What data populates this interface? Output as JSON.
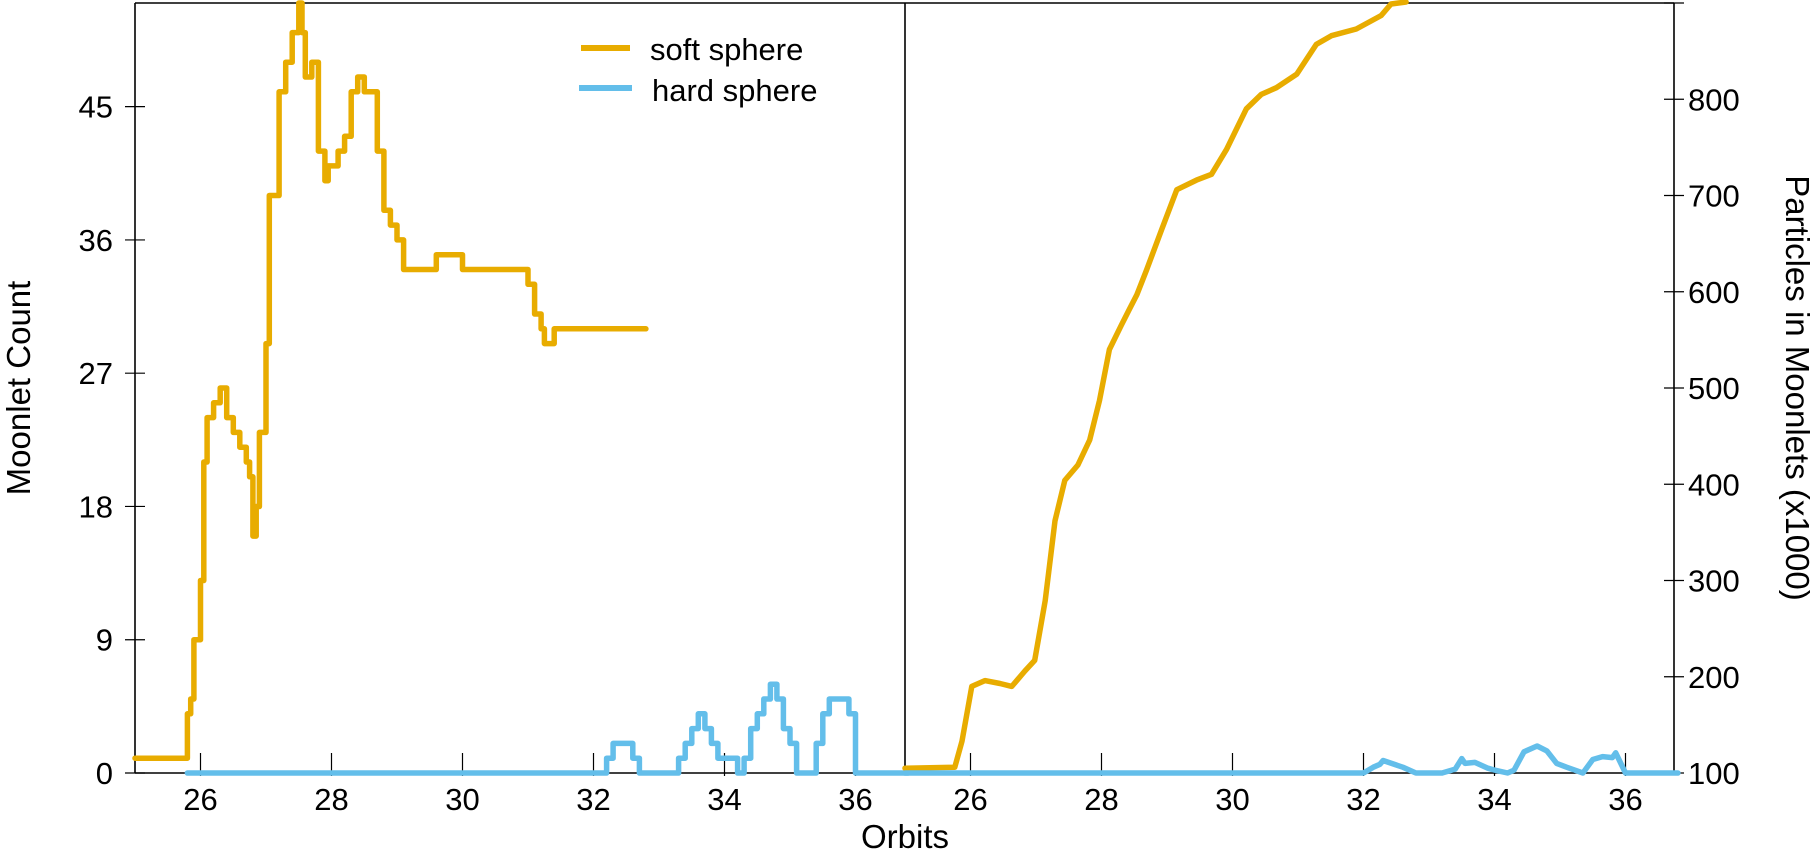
{
  "chart_data": [
    {
      "type": "line",
      "panel": "left",
      "xlabel": "Orbits",
      "ylabel": "Moonlet Count",
      "xlim": [
        25,
        36.8
      ],
      "ylim": [
        0,
        52
      ],
      "xticks": [
        26,
        28,
        30,
        32,
        34,
        36
      ],
      "yticks": [
        0,
        9,
        18,
        27,
        36,
        45
      ],
      "grid": false,
      "legend": {
        "position": "upper center",
        "entries": [
          "soft sphere",
          "hard sphere"
        ]
      },
      "series": [
        {
          "name": "soft sphere",
          "color": "#E8AC00",
          "x": [
            25.0,
            25.7,
            25.8,
            25.85,
            25.9,
            25.95,
            26.0,
            26.05,
            26.1,
            26.2,
            26.3,
            26.4,
            26.5,
            26.6,
            26.7,
            26.75,
            26.8,
            26.85,
            26.9,
            27.0,
            27.05,
            27.1,
            27.2,
            27.3,
            27.4,
            27.5,
            27.55,
            27.6,
            27.7,
            27.8,
            27.9,
            27.95,
            28.0,
            28.1,
            28.2,
            28.3,
            28.4,
            28.5,
            28.6,
            28.7,
            28.8,
            28.9,
            29.0,
            29.1,
            29.2,
            29.5,
            29.6,
            29.9,
            30.0,
            30.5,
            30.7,
            31.0,
            31.1,
            31.2,
            31.25,
            31.3,
            31.4,
            32.8
          ],
          "y": [
            1,
            1,
            4,
            5,
            9,
            9,
            13,
            21,
            24,
            25,
            26,
            24,
            23,
            22,
            21,
            20,
            16,
            18,
            23,
            29,
            39,
            39,
            46,
            48,
            50,
            52,
            50,
            47,
            48,
            42,
            40,
            41,
            41,
            42,
            43,
            46,
            47,
            46,
            46,
            42,
            38,
            37,
            36,
            34,
            34,
            34,
            35,
            35,
            34,
            34,
            34,
            33,
            31,
            30,
            29,
            29,
            30,
            30
          ]
        },
        {
          "name": "hard sphere",
          "color": "#63BEEA",
          "x": [
            25.8,
            32.1,
            32.2,
            32.3,
            32.5,
            32.6,
            32.7,
            33.0,
            33.3,
            33.4,
            33.5,
            33.6,
            33.7,
            33.8,
            33.9,
            34.0,
            34.1,
            34.2,
            34.3,
            34.4,
            34.5,
            34.6,
            34.7,
            34.8,
            34.9,
            35.0,
            35.1,
            35.3,
            35.4,
            35.5,
            35.6,
            35.8,
            35.9,
            36.0,
            36.8
          ],
          "y": [
            0,
            0,
            1,
            2,
            2,
            1,
            0,
            0,
            1,
            2,
            3,
            4,
            3,
            2,
            1,
            1,
            1,
            0,
            1,
            3,
            4,
            5,
            6,
            5,
            3,
            2,
            0,
            0,
            2,
            4,
            5,
            5,
            4,
            0,
            0
          ]
        }
      ]
    },
    {
      "type": "line",
      "panel": "right",
      "xlabel": "Orbits",
      "ylabel": "Particles in Moonlets (x1000)",
      "xlim": [
        25,
        36.8
      ],
      "ylim": [
        100,
        900
      ],
      "xticks": [
        26,
        28,
        30,
        32,
        34,
        36
      ],
      "yticks": [
        100,
        200,
        300,
        400,
        500,
        600,
        700,
        800
      ],
      "grid": false,
      "series": [
        {
          "name": "soft sphere",
          "color": "#E8AC00",
          "x": [
            25.0,
            25.76,
            25.87,
            26.02,
            26.22,
            26.45,
            26.63,
            26.83,
            26.98,
            27.14,
            27.29,
            27.44,
            27.64,
            27.82,
            27.97,
            28.12,
            28.3,
            28.42,
            28.54,
            28.69,
            28.92,
            29.15,
            29.45,
            29.68,
            29.91,
            30.21,
            30.44,
            30.67,
            30.98,
            31.28,
            31.51,
            31.89,
            32.27,
            32.42,
            32.65
          ],
          "y": [
            105,
            106,
            133,
            190,
            196,
            193,
            190,
            206,
            217,
            279,
            362,
            404,
            420,
            446,
            487,
            540,
            565,
            581,
            597,
            623,
            665,
            706,
            716,
            722,
            748,
            790,
            805,
            812,
            826,
            857,
            866,
            873,
            887,
            899,
            901
          ]
        },
        {
          "name": "hard sphere",
          "color": "#63BEEA",
          "x": [
            25.0,
            32.0,
            32.15,
            32.25,
            32.3,
            32.6,
            32.8,
            33.2,
            33.4,
            33.5,
            33.55,
            33.7,
            33.9,
            34.0,
            34.2,
            34.3,
            34.45,
            34.65,
            34.8,
            34.95,
            35.1,
            35.35,
            35.5,
            35.65,
            35.8,
            35.85,
            36.0,
            36.8
          ],
          "y": [
            100,
            100,
            106,
            109,
            113,
            106,
            100,
            100,
            104,
            115,
            110,
            111,
            105,
            103,
            100,
            103,
            122,
            128,
            123,
            110,
            106,
            100,
            114,
            117,
            116,
            121,
            100,
            100
          ]
        }
      ]
    }
  ],
  "figure": {
    "x_axis_title": "Orbits",
    "left_axis_title": "Moonlet Count",
    "right_axis_title": "Particles in Moonlets (x1000)",
    "legend": [
      {
        "label": "soft sphere",
        "color": "#E8AC00"
      },
      {
        "label": "hard sphere",
        "color": "#63BEEA"
      }
    ]
  }
}
